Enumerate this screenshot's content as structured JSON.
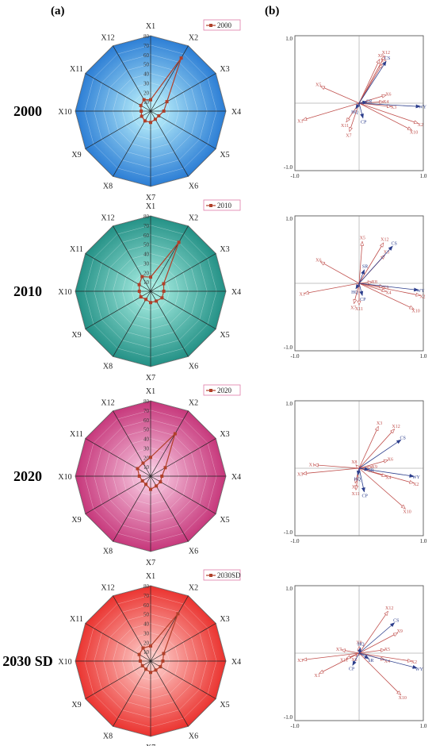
{
  "panel_labels": [
    "(a)",
    "(b)"
  ],
  "rows": [
    {
      "year_label": "2000",
      "legend": "2000",
      "fill_center": "#c8fbff",
      "fill_edge": "#1a6fd0",
      "series_color": "#b0402a"
    },
    {
      "year_label": "2010",
      "legend": "2010",
      "fill_center": "#b2f5ea",
      "fill_edge": "#13857a",
      "series_color": "#b0402a"
    },
    {
      "year_label": "2020",
      "legend": "2020",
      "fill_center": "#fcd6ea",
      "fill_edge": "#c0256e",
      "series_color": "#b0402a"
    },
    {
      "year_label": "2030 SD",
      "legend": "2030SD",
      "fill_center": "#ffd9d6",
      "fill_edge": "#e8201c",
      "series_color": "#b0402a"
    }
  ],
  "chart_data": [
    {
      "type": "radar",
      "categories": [
        "X1",
        "X2",
        "X3",
        "X4",
        "X5",
        "X6",
        "X7",
        "X8",
        "X9",
        "X10",
        "X11",
        "X12"
      ],
      "rlim": [
        0,
        80
      ],
      "ticks": [
        10,
        20,
        30,
        40,
        50,
        60,
        70,
        80
      ],
      "series": [
        {
          "name": "2000",
          "values": [
            12,
            65,
            20,
            14,
            10,
            10,
            12,
            12,
            11,
            10,
            12,
            14
          ]
        },
        {
          "name": "2010",
          "values": [
            15,
            60,
            16,
            14,
            14,
            12,
            12,
            10,
            12,
            12,
            14,
            18
          ]
        },
        {
          "name": "2020",
          "values": [
            20,
            52,
            18,
            12,
            12,
            12,
            14,
            10,
            10,
            12,
            16,
            16
          ]
        },
        {
          "name": "2030SD",
          "values": [
            16,
            58,
            16,
            13,
            12,
            11,
            12,
            10,
            10,
            11,
            14,
            16
          ]
        }
      ]
    },
    {
      "type": "biplot",
      "xlim": [
        -1.0,
        1.0
      ],
      "ylim": [
        -1.0,
        1.0
      ],
      "tick_labels": {
        "x_min": "-1.0",
        "x_max": "1.0",
        "y_max": "1.0",
        "y_min": "-1.0"
      },
      "panels": [
        {
          "responses": [
            {
              "name": "WY",
              "x": 0.95,
              "y": -0.05
            },
            {
              "name": "CS",
              "x": 0.42,
              "y": 0.62
            },
            {
              "name": "SR",
              "x": 0.12,
              "y": 0.02
            },
            {
              "name": "HQ",
              "x": -0.05,
              "y": -0.08
            },
            {
              "name": "CP",
              "x": 0.06,
              "y": -0.22
            }
          ],
          "variables": [
            {
              "name": "X1",
              "x": -0.88,
              "y": -0.25
            },
            {
              "name": "X2",
              "x": 0.92,
              "y": -0.3
            },
            {
              "name": "X3",
              "x": 0.5,
              "y": -0.05
            },
            {
              "name": "X4",
              "x": 0.38,
              "y": 0.02
            },
            {
              "name": "X5",
              "x": -0.6,
              "y": 0.25
            },
            {
              "name": "X6",
              "x": 0.42,
              "y": 0.12
            },
            {
              "name": "X7",
              "x": -0.15,
              "y": -0.42
            },
            {
              "name": "X8",
              "x": 0.32,
              "y": 0.65
            },
            {
              "name": "X9",
              "x": 0.36,
              "y": 0.58
            },
            {
              "name": "X10",
              "x": 0.82,
              "y": -0.4
            },
            {
              "name": "X11",
              "x": -0.2,
              "y": -0.28
            },
            {
              "name": "X12",
              "x": 0.4,
              "y": 0.7
            }
          ]
        },
        {
          "responses": [
            {
              "name": "WY",
              "x": 0.92,
              "y": -0.1
            },
            {
              "name": "CS",
              "x": 0.52,
              "y": 0.55
            },
            {
              "name": "SR",
              "x": 0.08,
              "y": 0.2
            },
            {
              "name": "HQ",
              "x": -0.05,
              "y": -0.08
            },
            {
              "name": "CP",
              "x": 0.05,
              "y": -0.18
            }
          ],
          "variables": [
            {
              "name": "X1",
              "x": -0.85,
              "y": -0.15
            },
            {
              "name": "X2",
              "x": 0.95,
              "y": -0.18
            },
            {
              "name": "X3",
              "x": 0.4,
              "y": 0.42
            },
            {
              "name": "X4",
              "x": 0.42,
              "y": -0.12
            },
            {
              "name": "X5",
              "x": 0.05,
              "y": 0.62
            },
            {
              "name": "X6",
              "x": -0.6,
              "y": 0.32
            },
            {
              "name": "X7",
              "x": -0.08,
              "y": -0.3
            },
            {
              "name": "X8",
              "x": 0.2,
              "y": 0.02
            },
            {
              "name": "X9",
              "x": 0.38,
              "y": -0.05
            },
            {
              "name": "X10",
              "x": 0.85,
              "y": -0.38
            },
            {
              "name": "X11",
              "x": 0.0,
              "y": -0.32
            },
            {
              "name": "X12",
              "x": 0.38,
              "y": 0.6
            }
          ]
        },
        {
          "responses": [
            {
              "name": "WY",
              "x": 0.85,
              "y": -0.12
            },
            {
              "name": "CS",
              "x": 0.65,
              "y": 0.42
            },
            {
              "name": "SR",
              "x": 0.15,
              "y": -0.02
            },
            {
              "name": "HQ",
              "x": -0.02,
              "y": -0.1
            },
            {
              "name": "CP",
              "x": 0.08,
              "y": -0.35
            }
          ],
          "variables": [
            {
              "name": "X1",
              "x": -0.7,
              "y": 0.05
            },
            {
              "name": "X2",
              "x": 0.85,
              "y": -0.22
            },
            {
              "name": "X3",
              "x": 0.3,
              "y": 0.62
            },
            {
              "name": "X4",
              "x": 0.42,
              "y": -0.12
            },
            {
              "name": "X5",
              "x": -0.88,
              "y": -0.08
            },
            {
              "name": "X6",
              "x": 0.45,
              "y": 0.12
            },
            {
              "name": "X7",
              "x": -0.06,
              "y": -0.22
            },
            {
              "name": "X8",
              "x": -0.05,
              "y": 0.05
            },
            {
              "name": "X9",
              "x": 0.2,
              "y": 0.02
            },
            {
              "name": "X10",
              "x": 0.72,
              "y": -0.6
            },
            {
              "name": "X11",
              "x": -0.05,
              "y": -0.32
            },
            {
              "name": "X12",
              "x": 0.55,
              "y": 0.58
            }
          ]
        },
        {
          "responses": [
            {
              "name": "WY",
              "x": 0.9,
              "y": -0.22
            },
            {
              "name": "CS",
              "x": 0.55,
              "y": 0.45
            },
            {
              "name": "SR",
              "x": 0.15,
              "y": -0.08
            },
            {
              "name": "HQ",
              "x": 0.02,
              "y": 0.08
            },
            {
              "name": "CP",
              "x": -0.1,
              "y": -0.18
            }
          ],
          "variables": [
            {
              "name": "X1",
              "x": -0.62,
              "y": -0.3
            },
            {
              "name": "X2",
              "x": 0.82,
              "y": -0.12
            },
            {
              "name": "X3",
              "x": -0.88,
              "y": -0.1
            },
            {
              "name": "X4",
              "x": 0.4,
              "y": -0.1
            },
            {
              "name": "X5",
              "x": 0.4,
              "y": 0.05
            },
            {
              "name": "X6",
              "x": -0.05,
              "y": -0.05
            },
            {
              "name": "X7",
              "x": -0.28,
              "y": 0.05
            },
            {
              "name": "X8",
              "x": 0.0,
              "y": 0.1
            },
            {
              "name": "X9",
              "x": 0.6,
              "y": 0.3
            },
            {
              "name": "X10",
              "x": 0.65,
              "y": -0.62
            },
            {
              "name": "X11",
              "x": -0.2,
              "y": -0.08
            },
            {
              "name": "X12",
              "x": 0.45,
              "y": 0.62
            }
          ]
        }
      ]
    }
  ]
}
